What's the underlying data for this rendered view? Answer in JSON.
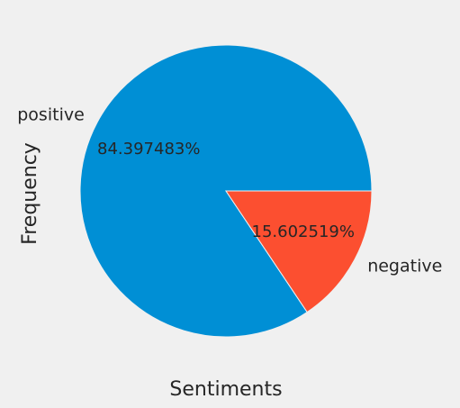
{
  "chart_data": {
    "type": "pie",
    "categories": [
      "positive",
      "negative"
    ],
    "values": [
      84.397483,
      15.602519
    ],
    "percent_labels": [
      "84.397483%",
      "15.602519%"
    ],
    "colors": [
      "#008fd5",
      "#fc4f30"
    ],
    "xlabel": "Sentiments",
    "ylabel": "Frequency",
    "start_angle_deg": 0,
    "direction": "counterclockwise",
    "background": "#f0f0f0",
    "edge_color": "#f0f0f0"
  }
}
